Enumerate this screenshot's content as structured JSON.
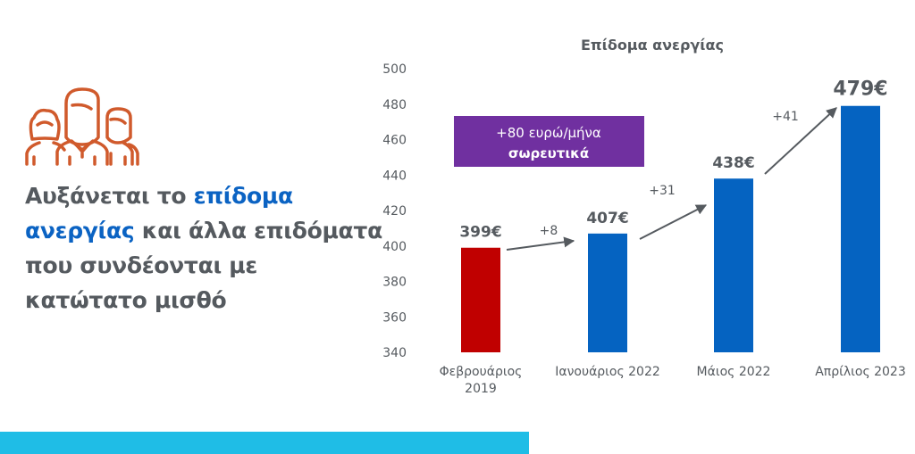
{
  "headline": {
    "part1": "Αυξάνεται το ",
    "highlight": "επίδομα ανεργίας",
    "part2": " και άλλα επιδόματα που συνδέονται με κατώτατο μισθό"
  },
  "callout": {
    "line1": "+80 ευρώ/μήνα",
    "line2": "σωρευτικά"
  },
  "colors": {
    "accent": "#0b63c3",
    "first_bar": "#c00000",
    "bars": "#0563c1",
    "callout": "#7030a0",
    "icon": "#d05a2c",
    "bottom_bar": "#1fbde6",
    "text": "#555a5f"
  },
  "chart_data": {
    "type": "bar",
    "title": "Επίδομα ανεργίας",
    "categories": [
      [
        "Φεβρουάριος",
        "2019"
      ],
      [
        "Ιανουάριος 2022"
      ],
      [
        "Μάιος 2022"
      ],
      [
        "Απρίλιος 2023"
      ]
    ],
    "values": [
      399,
      407,
      438,
      479
    ],
    "data_labels": [
      "399€",
      "407€",
      "438€",
      "479€"
    ],
    "increments": [
      "+8",
      "+31",
      "+41"
    ],
    "ylim": [
      340,
      500
    ],
    "yticks": [
      340,
      360,
      380,
      400,
      420,
      440,
      460,
      480,
      500
    ],
    "xlabel": "",
    "ylabel": "",
    "grid": false
  }
}
